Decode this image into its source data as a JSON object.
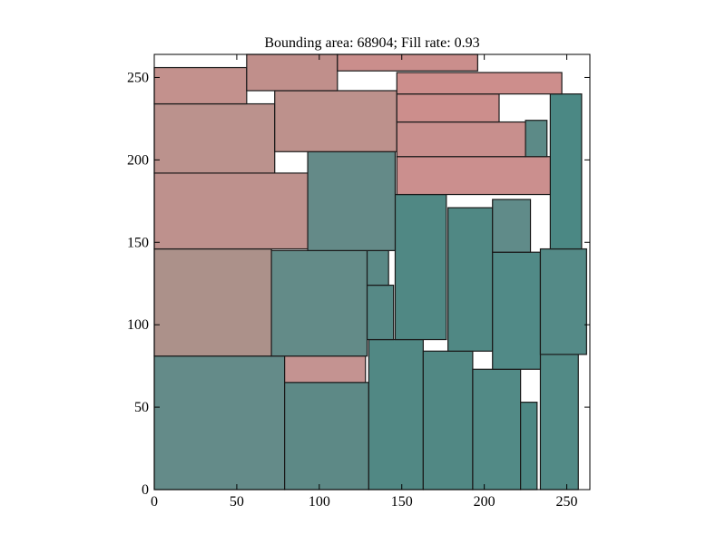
{
  "chart_data": {
    "type": "rectangle-packing",
    "title": "Bounding area: 68904;    Fill rate: 0.93",
    "xlim": [
      0,
      264
    ],
    "ylim": [
      0,
      264
    ],
    "xticks": [
      0,
      50,
      100,
      150,
      200,
      250
    ],
    "yticks": [
      0,
      50,
      100,
      150,
      200,
      250
    ],
    "xlabel": "",
    "ylabel": "",
    "grid": false,
    "colors": {
      "teal_light": "#6a8a88",
      "teal_dark": "#4b8986",
      "pink_light": "#b8928c",
      "pink_dark": "#cc8e8c",
      "edge": "#1a1a1a"
    },
    "rectangles": [
      {
        "x": 0,
        "y": 0,
        "w": 79,
        "h": 81,
        "color": "#648b89"
      },
      {
        "x": 79,
        "y": 0,
        "w": 51,
        "h": 65,
        "color": "#5d8986"
      },
      {
        "x": 79,
        "y": 65,
        "w": 49,
        "h": 16,
        "color": "#c49391"
      },
      {
        "x": 130,
        "y": 0,
        "w": 33,
        "h": 91,
        "color": "#518884"
      },
      {
        "x": 163,
        "y": 0,
        "w": 30,
        "h": 84,
        "color": "#518884"
      },
      {
        "x": 193,
        "y": 0,
        "w": 29,
        "h": 73,
        "color": "#528a86"
      },
      {
        "x": 222,
        "y": 0,
        "w": 10,
        "h": 53,
        "color": "#4d8884"
      },
      {
        "x": 234,
        "y": 0,
        "w": 23,
        "h": 82,
        "color": "#528a86"
      },
      {
        "x": 0,
        "y": 81,
        "w": 71,
        "h": 65,
        "color": "#ac918a"
      },
      {
        "x": 71,
        "y": 81,
        "w": 58,
        "h": 64,
        "color": "#638b88"
      },
      {
        "x": 129,
        "y": 91,
        "w": 16,
        "h": 33,
        "color": "#568986"
      },
      {
        "x": 129,
        "y": 124,
        "w": 13,
        "h": 21,
        "color": "#5a8986"
      },
      {
        "x": 146,
        "y": 91,
        "w": 31,
        "h": 88,
        "color": "#508884"
      },
      {
        "x": 178,
        "y": 84,
        "w": 27,
        "h": 87,
        "color": "#508884"
      },
      {
        "x": 205,
        "y": 73,
        "w": 29,
        "h": 71,
        "color": "#518a87"
      },
      {
        "x": 205,
        "y": 144,
        "w": 23,
        "h": 32,
        "color": "#608b89"
      },
      {
        "x": 234,
        "y": 82,
        "w": 28,
        "h": 64,
        "color": "#548a87"
      },
      {
        "x": 240,
        "y": 146,
        "w": 19,
        "h": 94,
        "color": "#4b8884"
      },
      {
        "x": 0,
        "y": 146,
        "w": 93,
        "h": 46,
        "color": "#be918d"
      },
      {
        "x": 93,
        "y": 145,
        "w": 53,
        "h": 60,
        "color": "#648a88"
      },
      {
        "x": 147,
        "y": 179,
        "w": 93,
        "h": 23,
        "color": "#cb8f8e"
      },
      {
        "x": 0,
        "y": 192,
        "w": 73,
        "h": 42,
        "color": "#bb928d"
      },
      {
        "x": 73,
        "y": 205,
        "w": 74,
        "h": 37,
        "color": "#bd918c"
      },
      {
        "x": 147,
        "y": 202,
        "w": 78,
        "h": 21,
        "color": "#c88f8d"
      },
      {
        "x": 225,
        "y": 202,
        "w": 13,
        "h": 22,
        "color": "#5c8a87"
      },
      {
        "x": 147,
        "y": 223,
        "w": 62,
        "h": 17,
        "color": "#cc8e8c"
      },
      {
        "x": 147,
        "y": 240,
        "w": 100,
        "h": 13,
        "color": "#cd8e8c"
      },
      {
        "x": 0,
        "y": 234,
        "w": 56,
        "h": 22,
        "color": "#c3918d"
      },
      {
        "x": 56,
        "y": 242,
        "w": 55,
        "h": 22,
        "color": "#c08f8b"
      },
      {
        "x": 111,
        "y": 254,
        "w": 85,
        "h": 10,
        "color": "#ca8e8c"
      }
    ]
  }
}
